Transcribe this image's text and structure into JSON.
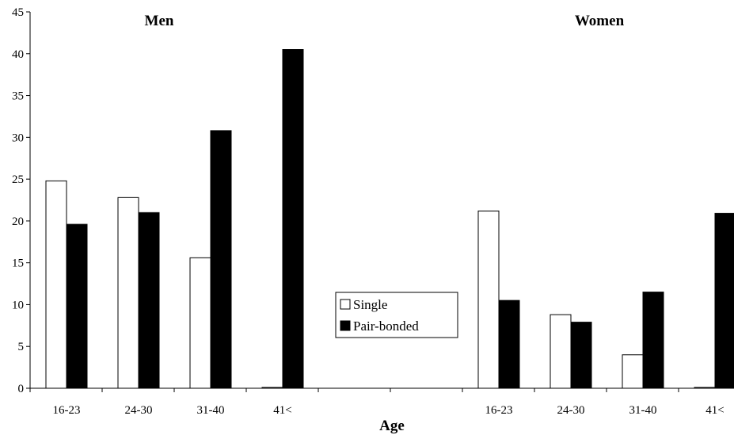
{
  "chart_data": {
    "type": "bar",
    "xlabel": "Age",
    "ylabel": "",
    "ylim": [
      0,
      45
    ],
    "yticks": [
      0,
      5,
      10,
      15,
      20,
      25,
      30,
      35,
      40,
      45
    ],
    "grid": false,
    "legend": {
      "placement": "center",
      "entries": [
        {
          "label": "Single",
          "color": "#ffffff"
        },
        {
          "label": "Pair-bonded",
          "color": "#000000"
        }
      ]
    },
    "panels": [
      {
        "title": "Men",
        "categories": [
          "16-23",
          "24-30",
          "31-40",
          "41<"
        ],
        "series": [
          {
            "name": "Single",
            "values": [
              24.8,
              22.8,
              15.6,
              0.1
            ]
          },
          {
            "name": "Pair-bonded",
            "values": [
              19.6,
              21.0,
              30.8,
              40.5
            ]
          }
        ]
      },
      {
        "title": "Women",
        "categories": [
          "16-23",
          "24-30",
          "31-40",
          "41<"
        ],
        "series": [
          {
            "name": "Single",
            "values": [
              21.2,
              8.8,
              4.0,
              0.1
            ]
          },
          {
            "name": "Pair-bonded",
            "values": [
              10.5,
              7.9,
              11.5,
              20.9
            ]
          }
        ]
      }
    ]
  }
}
